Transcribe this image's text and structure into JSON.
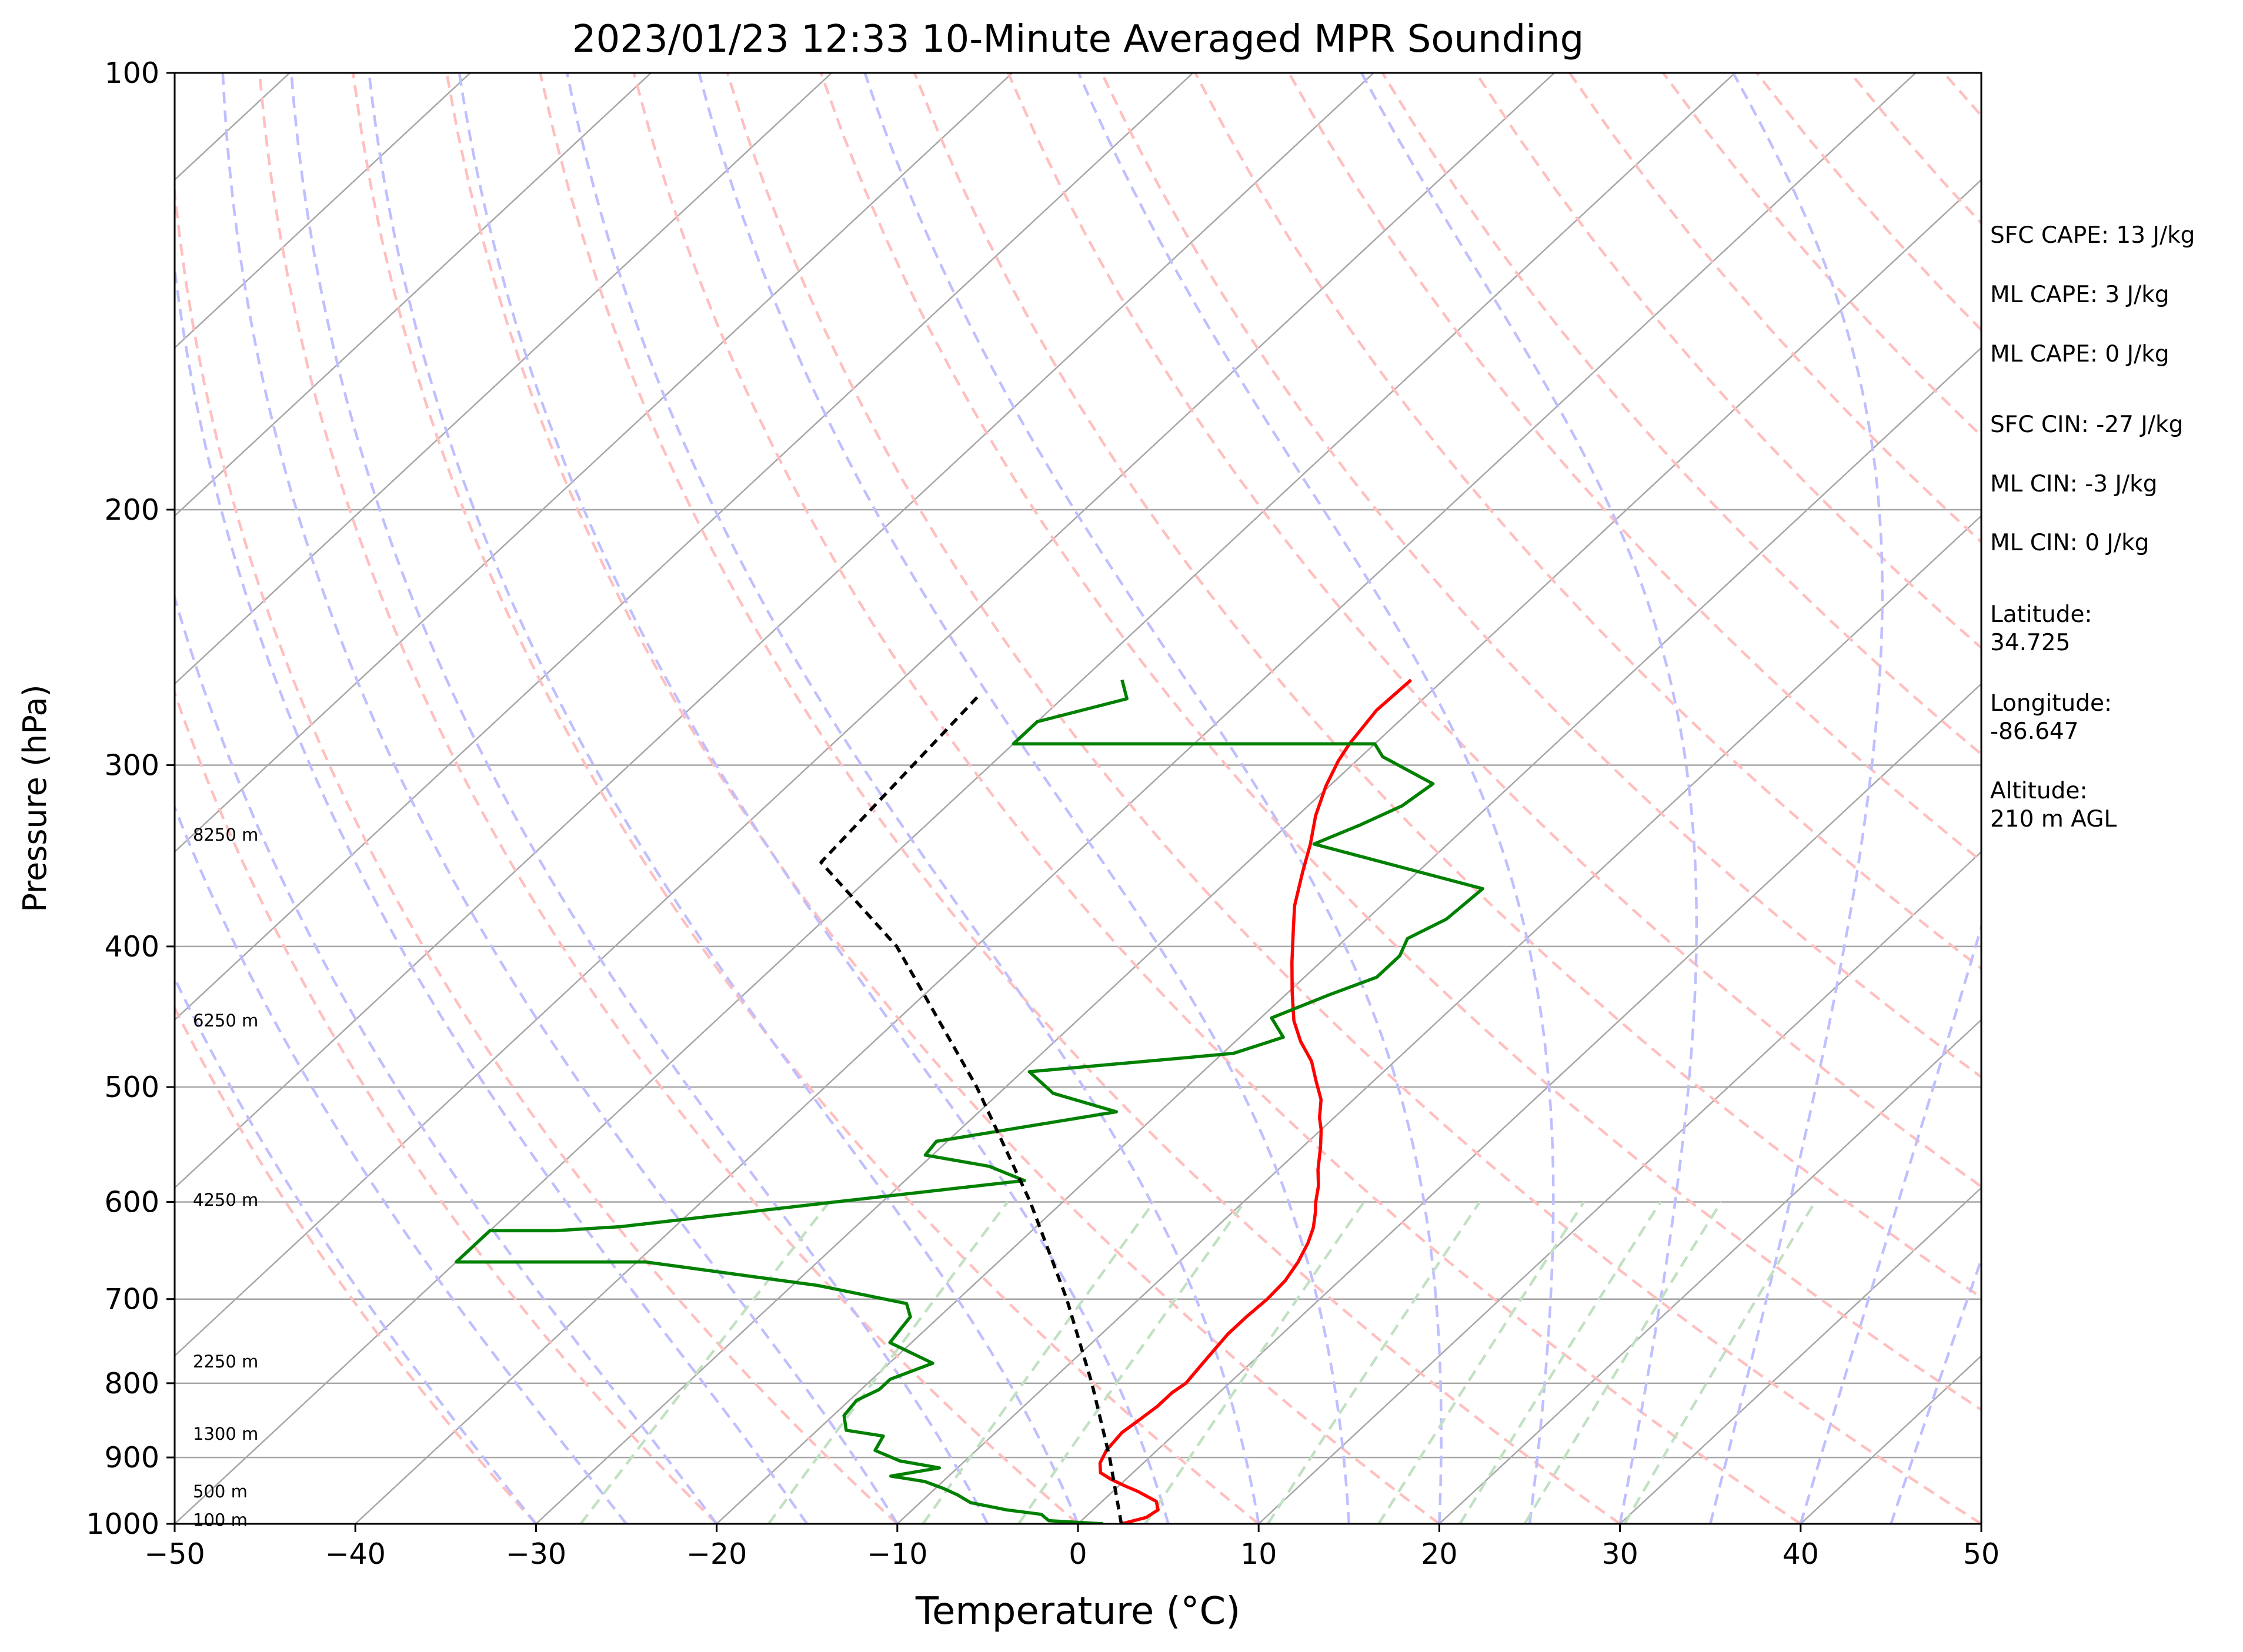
{
  "chart_data": {
    "type": "line",
    "title": "2023/01/23 12:33 10-Minute Averaged MPR Sounding",
    "xlabel": "Temperature (°C)",
    "ylabel": "Pressure (hPa)",
    "xlim": [
      -50,
      50
    ],
    "ylim": [
      1000,
      100
    ],
    "y_scale": "log",
    "x_ticks": [
      "−50",
      "−40",
      "−30",
      "−20",
      "−10",
      "0",
      "10",
      "20",
      "30",
      "40",
      "50"
    ],
    "x_tick_values": [
      -50,
      -40,
      -30,
      -20,
      -10,
      0,
      10,
      20,
      30,
      40,
      50
    ],
    "y_ticks": [
      "100",
      "200",
      "300",
      "400",
      "500",
      "600",
      "700",
      "800",
      "900",
      "1000"
    ],
    "y_tick_values": [
      100,
      200,
      300,
      400,
      500,
      600,
      700,
      800,
      900,
      1000
    ],
    "grid": "isobars",
    "colors": {
      "temperature": "#ff0000",
      "dewpoint": "#008000",
      "parcel": "#000000",
      "isotherm": "#a6a6a6",
      "dry_adiabat": "#ffbfbf",
      "moist_adiabat": "#bfbfff",
      "mixing_ratio": "#c2e0c2"
    },
    "series": [
      {
        "key": "temperature",
        "points": [
          [
            2.4,
            1000
          ],
          [
            3.4,
            990
          ],
          [
            3.6,
            978
          ],
          [
            3.0,
            965
          ],
          [
            1.4,
            950
          ],
          [
            0.4,
            942
          ],
          [
            -0.8,
            932
          ],
          [
            -1.8,
            922
          ],
          [
            -2.4,
            908
          ],
          [
            -2.8,
            890
          ],
          [
            -3.0,
            865
          ],
          [
            -2.8,
            848
          ],
          [
            -2.6,
            830
          ],
          [
            -2.6,
            812
          ],
          [
            -2.4,
            800
          ],
          [
            -2.6,
            780
          ],
          [
            -2.8,
            760
          ],
          [
            -3.0,
            740
          ],
          [
            -3.0,
            720
          ],
          [
            -2.9,
            700
          ],
          [
            -3.0,
            680
          ],
          [
            -3.4,
            660
          ],
          [
            -4.0,
            640
          ],
          [
            -4.6,
            625
          ],
          [
            -5.4,
            610
          ],
          [
            -6.0,
            600
          ],
          [
            -6.8,
            585
          ],
          [
            -7.8,
            570
          ],
          [
            -9.0,
            550
          ],
          [
            -10.0,
            535
          ],
          [
            -10.8,
            525
          ],
          [
            -11.8,
            510
          ],
          [
            -13.2,
            495
          ],
          [
            -14.6,
            480
          ],
          [
            -16.4,
            465
          ],
          [
            -18.0,
            450
          ],
          [
            -19.8,
            430
          ],
          [
            -21.6,
            410
          ],
          [
            -23.4,
            390
          ],
          [
            -24.8,
            375
          ],
          [
            -26.4,
            355
          ],
          [
            -27.6,
            340
          ],
          [
            -29.0,
            325
          ],
          [
            -30.2,
            310
          ],
          [
            -31.0,
            298
          ],
          [
            -31.4,
            290
          ],
          [
            -31.9,
            275
          ],
          [
            -31.8,
            262
          ]
        ]
      },
      {
        "key": "dewpoint",
        "points": [
          [
            1.4,
            1000
          ],
          [
            -1.8,
            995
          ],
          [
            -2.6,
            985
          ],
          [
            -4.8,
            978
          ],
          [
            -7.2,
            967
          ],
          [
            -8.4,
            955
          ],
          [
            -9.6,
            945
          ],
          [
            -11.0,
            935
          ],
          [
            -13.2,
            927
          ],
          [
            -11.0,
            915
          ],
          [
            -13.6,
            905
          ],
          [
            -15.6,
            890
          ],
          [
            -16.0,
            870
          ],
          [
            -18.4,
            862
          ],
          [
            -19.4,
            842
          ],
          [
            -19.6,
            822
          ],
          [
            -19.0,
            808
          ],
          [
            -19.0,
            795
          ],
          [
            -17.6,
            775
          ],
          [
            -21.2,
            750
          ],
          [
            -21.4,
            735
          ],
          [
            -21.6,
            720
          ],
          [
            -22.6,
            705
          ],
          [
            -28.6,
            685
          ],
          [
            -39.5,
            660
          ],
          [
            -50.0,
            660
          ],
          [
            -50.0,
            628
          ],
          [
            -46.4,
            628
          ],
          [
            -43.0,
            624
          ],
          [
            -32.6,
            600
          ],
          [
            -23.4,
            580
          ],
          [
            -26.2,
            567
          ],
          [
            -30.4,
            557
          ],
          [
            -30.6,
            545
          ],
          [
            -22.4,
            520
          ],
          [
            -27.0,
            505
          ],
          [
            -29.6,
            488
          ],
          [
            -19.4,
            474
          ],
          [
            -17.6,
            462
          ],
          [
            -19.4,
            448
          ],
          [
            -17.6,
            432
          ],
          [
            -16.0,
            420
          ],
          [
            -16.0,
            406
          ],
          [
            -16.6,
            395
          ],
          [
            -15.6,
            383
          ],
          [
            -15.4,
            365
          ],
          [
            -27.4,
            340
          ],
          [
            -26.0,
            330
          ],
          [
            -24.8,
            320
          ],
          [
            -24.4,
            309
          ],
          [
            -28.8,
            296
          ],
          [
            -30.0,
            290
          ],
          [
            -45.4,
            290
          ],
          [
            -50.0,
            290
          ],
          [
            -50.0,
            280
          ],
          [
            -46.4,
            270
          ],
          [
            -47.8,
            262
          ]
        ]
      },
      {
        "key": "parcel",
        "points": [
          [
            2.4,
            1000
          ],
          [
            -2.2,
            900
          ],
          [
            -7.6,
            800
          ],
          [
            -14.0,
            700
          ],
          [
            -21.8,
            600
          ],
          [
            -31.6,
            500
          ],
          [
            -44.4,
            400
          ],
          [
            -53.6,
            350
          ],
          [
            -54.8,
            268
          ]
        ]
      }
    ],
    "height_labels": [
      {
        "text": "100 m",
        "p": 994
      },
      {
        "text": "500 m",
        "p": 950
      },
      {
        "text": "1300 m",
        "p": 867
      },
      {
        "text": "2250 m",
        "p": 773
      },
      {
        "text": "4250 m",
        "p": 598
      },
      {
        "text": "6250 m",
        "p": 450
      },
      {
        "text": "8250 m",
        "p": 335
      }
    ]
  },
  "stats": [
    "SFC CAPE: 13 J/kg",
    "ML CAPE: 3 J/kg",
    "ML CAPE: 0 J/kg",
    "SFC CIN: -27 J/kg",
    "ML CIN: -3 J/kg",
    "ML CIN: 0 J/kg"
  ],
  "location": {
    "latitude_label": "Latitude:",
    "latitude": "34.725",
    "longitude_label": "Longitude:",
    "longitude": "-86.647",
    "altitude_label": "Altitude:",
    "altitude": "210 m AGL"
  }
}
